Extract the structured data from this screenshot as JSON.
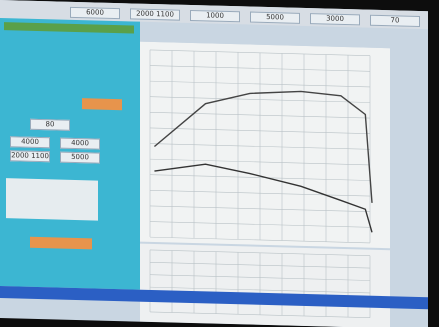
{
  "toolbar": {
    "fields": [
      "6000",
      "2000 1100",
      "1000",
      "5000",
      "3000",
      "70"
    ]
  },
  "left_panel": {
    "fields": [
      "80",
      "4000",
      "4000",
      "2000 1100",
      "5000"
    ]
  },
  "chart": {
    "type": "line",
    "x": [
      2,
      25,
      45,
      68,
      86,
      97,
      100
    ],
    "xlim": [
      0,
      100
    ],
    "ylim": [
      -15,
      100
    ],
    "series": [
      {
        "color": "#444444",
        "values": [
          41,
          68,
          75,
          77,
          75,
          64,
          10
        ]
      },
      {
        "color": "#333333",
        "values": [
          26,
          31,
          26,
          19,
          11,
          6,
          -8
        ]
      }
    ]
  }
}
